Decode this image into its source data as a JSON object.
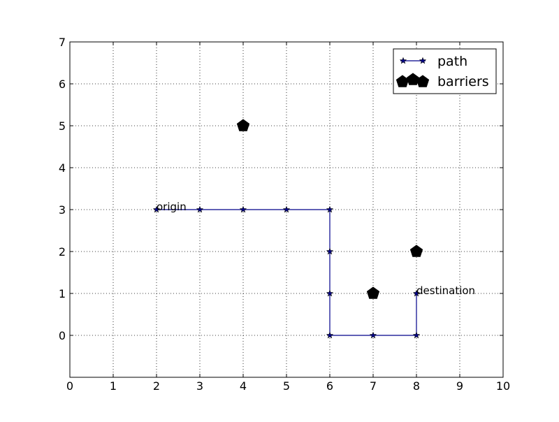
{
  "chart_data": {
    "type": "line",
    "title": "",
    "xlabel": "",
    "ylabel": "",
    "xlim": [
      0,
      10
    ],
    "ylim": [
      -1,
      7
    ],
    "x_ticks": [
      0,
      1,
      2,
      3,
      4,
      5,
      6,
      7,
      8,
      9,
      10
    ],
    "y_ticks": [
      0,
      1,
      2,
      3,
      4,
      5,
      6,
      7
    ],
    "grid": true,
    "grid_style": "dotted",
    "legend_position": "top-right",
    "series": [
      {
        "name": "path",
        "kind": "line",
        "marker": "star",
        "color": "#00008b",
        "points": [
          {
            "x": 2,
            "y": 3
          },
          {
            "x": 3,
            "y": 3
          },
          {
            "x": 4,
            "y": 3
          },
          {
            "x": 5,
            "y": 3
          },
          {
            "x": 6,
            "y": 3
          },
          {
            "x": 6,
            "y": 2
          },
          {
            "x": 6,
            "y": 1
          },
          {
            "x": 6,
            "y": 0
          },
          {
            "x": 7,
            "y": 0
          },
          {
            "x": 8,
            "y": 0
          },
          {
            "x": 8,
            "y": 1
          }
        ]
      },
      {
        "name": "barriers",
        "kind": "scatter",
        "marker": "pentagon",
        "color": "#000000",
        "points": [
          {
            "x": 4,
            "y": 5
          },
          {
            "x": 7,
            "y": 1
          },
          {
            "x": 8,
            "y": 2
          }
        ]
      }
    ],
    "annotations": [
      {
        "text": "origin",
        "x": 2,
        "y": 3
      },
      {
        "text": "destination",
        "x": 8,
        "y": 1
      }
    ]
  }
}
